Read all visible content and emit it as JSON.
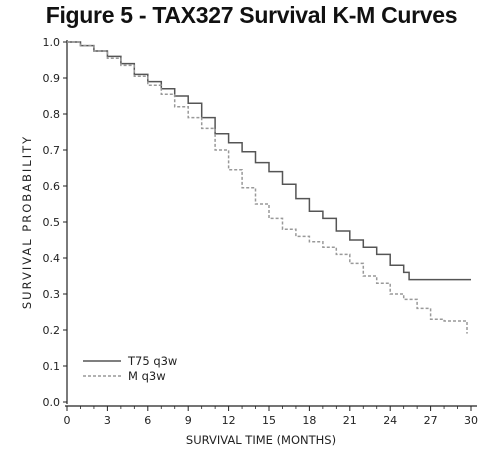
{
  "chart_data": {
    "type": "line",
    "title": "Figure 5 - TAX327 Survival K-M Curves",
    "xlabel": "SURVIVAL TIME (MONTHS)",
    "ylabel": "SURVIVAL PROBABILITY",
    "xlim": [
      0,
      30
    ],
    "ylim": [
      0,
      1.0
    ],
    "xticks": [
      0,
      3,
      6,
      9,
      12,
      15,
      18,
      21,
      24,
      27,
      30
    ],
    "yticks": [
      0.0,
      0.1,
      0.2,
      0.3,
      0.4,
      0.5,
      0.6,
      0.7,
      0.8,
      0.9,
      1.0
    ],
    "ytick_labels": [
      "0.0",
      "0.1",
      "0.2",
      "0.3",
      "0.4",
      "0.5",
      "0.6",
      "0.7",
      "0.8",
      "0.9",
      "1.0"
    ],
    "grid": false,
    "legend_position": "bottom-left",
    "series": [
      {
        "name": "T75 q3w",
        "color": "#555555",
        "style": "solid",
        "points": [
          [
            0,
            1.0
          ],
          [
            1,
            0.99
          ],
          [
            2,
            0.975
          ],
          [
            3,
            0.96
          ],
          [
            4,
            0.94
          ],
          [
            5,
            0.91
          ],
          [
            6,
            0.89
          ],
          [
            7,
            0.87
          ],
          [
            8,
            0.85
          ],
          [
            9,
            0.83
          ],
          [
            10,
            0.79
          ],
          [
            11,
            0.745
          ],
          [
            12,
            0.72
          ],
          [
            13,
            0.695
          ],
          [
            14,
            0.665
          ],
          [
            15,
            0.64
          ],
          [
            16,
            0.605
          ],
          [
            17,
            0.565
          ],
          [
            18,
            0.53
          ],
          [
            19,
            0.51
          ],
          [
            20,
            0.475
          ],
          [
            21,
            0.45
          ],
          [
            22,
            0.43
          ],
          [
            23,
            0.41
          ],
          [
            24,
            0.38
          ],
          [
            25,
            0.36
          ],
          [
            25.4,
            0.34
          ],
          [
            30,
            0.34
          ]
        ]
      },
      {
        "name": "M q3w",
        "color": "#999999",
        "style": "dashed",
        "points": [
          [
            0,
            1.0
          ],
          [
            1,
            0.99
          ],
          [
            2,
            0.975
          ],
          [
            3,
            0.955
          ],
          [
            4,
            0.935
          ],
          [
            5,
            0.905
          ],
          [
            6,
            0.88
          ],
          [
            7,
            0.855
          ],
          [
            8,
            0.82
          ],
          [
            9,
            0.79
          ],
          [
            10,
            0.76
          ],
          [
            11,
            0.7
          ],
          [
            12,
            0.645
          ],
          [
            13,
            0.595
          ],
          [
            14,
            0.55
          ],
          [
            15,
            0.51
          ],
          [
            16,
            0.48
          ],
          [
            17,
            0.46
          ],
          [
            18,
            0.445
          ],
          [
            19,
            0.43
          ],
          [
            20,
            0.41
          ],
          [
            21,
            0.385
          ],
          [
            22,
            0.35
          ],
          [
            23,
            0.33
          ],
          [
            24,
            0.3
          ],
          [
            25,
            0.285
          ],
          [
            26,
            0.26
          ],
          [
            27,
            0.23
          ],
          [
            28,
            0.225
          ],
          [
            29,
            0.225
          ],
          [
            29.7,
            0.19
          ]
        ]
      }
    ]
  }
}
